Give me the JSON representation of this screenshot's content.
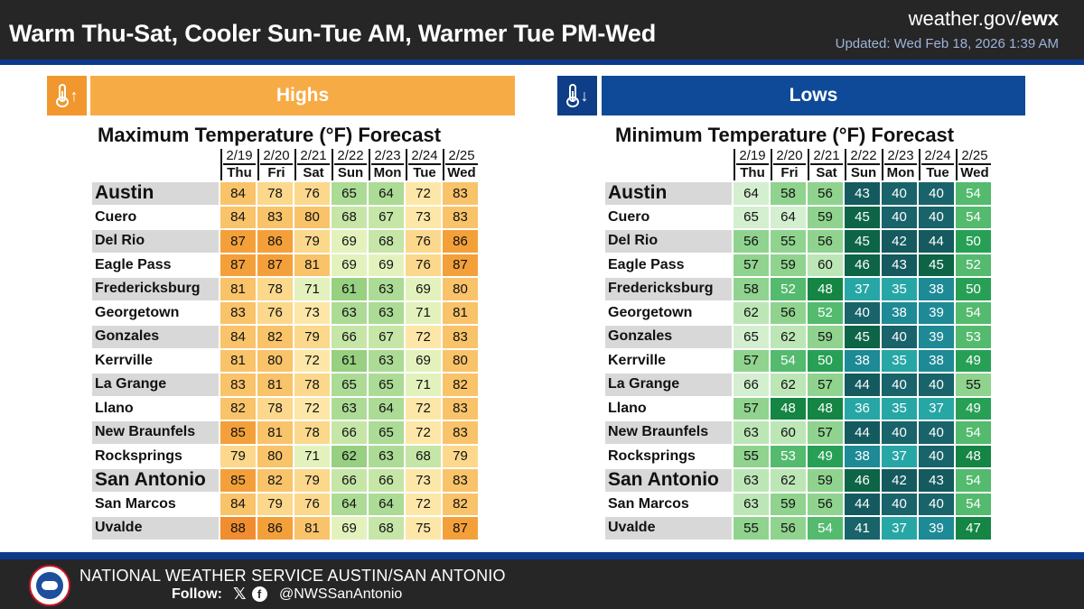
{
  "header": {
    "title": "Warm Thu-Sat, Cooler Sun-Tue AM, Warmer Tue PM-Wed",
    "site_prefix": "weather.gov/",
    "site_bold": "ewx",
    "updated": "Updated: Wed Feb 18, 2026 1:39 AM"
  },
  "highs": {
    "banner": "Highs",
    "chart_title": "Maximum Temperature (°F) Forecast"
  },
  "lows": {
    "banner": "Lows",
    "chart_title": "Minimum Temperature (°F) Forecast"
  },
  "footer": {
    "office": "NATIONAL WEATHER SERVICE AUSTIN/SAN ANTONIO",
    "follow_label": "Follow:",
    "handle": "@NWSSanAntonio"
  },
  "icons": {
    "highs": "thermometer-up-icon",
    "lows": "thermometer-down-icon",
    "x": "x-twitter-icon",
    "facebook": "facebook-icon",
    "logo": "nws-logo"
  },
  "colors": {
    "header_bg": "#262626",
    "stripe": "#0b3a8c",
    "highs_banner": "#f7ab45",
    "lows_banner": "#0e4a97"
  },
  "chart_data": {
    "type": "table",
    "dates": [
      "2/19",
      "2/20",
      "2/21",
      "2/22",
      "2/23",
      "2/24",
      "2/25"
    ],
    "days": [
      "Thu",
      "Fri",
      "Sat",
      "Sun",
      "Mon",
      "Tue",
      "Wed"
    ],
    "cities": [
      "Austin",
      "Cuero",
      "Del Rio",
      "Eagle Pass",
      "Fredericksburg",
      "Georgetown",
      "Gonzales",
      "Kerrville",
      "La Grange",
      "Llano",
      "New Braunfels",
      "Rocksprings",
      "San Antonio",
      "San Marcos",
      "Uvalde"
    ],
    "highs": [
      [
        84,
        78,
        76,
        65,
        64,
        72,
        83
      ],
      [
        84,
        83,
        80,
        68,
        67,
        73,
        83
      ],
      [
        87,
        86,
        79,
        69,
        68,
        76,
        86
      ],
      [
        87,
        87,
        81,
        69,
        69,
        76,
        87
      ],
      [
        81,
        78,
        71,
        61,
        63,
        69,
        80
      ],
      [
        83,
        76,
        73,
        63,
        63,
        71,
        81
      ],
      [
        84,
        82,
        79,
        66,
        67,
        72,
        83
      ],
      [
        81,
        80,
        72,
        61,
        63,
        69,
        80
      ],
      [
        83,
        81,
        78,
        65,
        65,
        71,
        82
      ],
      [
        82,
        78,
        72,
        63,
        64,
        72,
        83
      ],
      [
        85,
        81,
        78,
        66,
        65,
        72,
        83
      ],
      [
        79,
        80,
        71,
        62,
        63,
        68,
        79
      ],
      [
        85,
        82,
        79,
        66,
        66,
        73,
        83
      ],
      [
        84,
        79,
        76,
        64,
        64,
        72,
        82
      ],
      [
        88,
        86,
        81,
        69,
        68,
        75,
        87
      ]
    ],
    "lows": [
      [
        64,
        58,
        56,
        43,
        40,
        40,
        54
      ],
      [
        65,
        64,
        59,
        45,
        40,
        40,
        54
      ],
      [
        56,
        55,
        56,
        45,
        42,
        44,
        50
      ],
      [
        57,
        59,
        60,
        46,
        43,
        45,
        52
      ],
      [
        58,
        52,
        48,
        37,
        35,
        38,
        50
      ],
      [
        62,
        56,
        52,
        40,
        38,
        39,
        54
      ],
      [
        65,
        62,
        59,
        45,
        40,
        39,
        53
      ],
      [
        57,
        54,
        50,
        38,
        35,
        38,
        49
      ],
      [
        66,
        62,
        57,
        44,
        40,
        40,
        55
      ],
      [
        57,
        48,
        48,
        36,
        35,
        37,
        49
      ],
      [
        63,
        60,
        57,
        44,
        40,
        40,
        54
      ],
      [
        55,
        53,
        49,
        38,
        37,
        40,
        48
      ],
      [
        63,
        62,
        59,
        46,
        42,
        43,
        54
      ],
      [
        63,
        59,
        56,
        44,
        40,
        40,
        54
      ],
      [
        55,
        56,
        54,
        41,
        37,
        39,
        47
      ]
    ]
  }
}
